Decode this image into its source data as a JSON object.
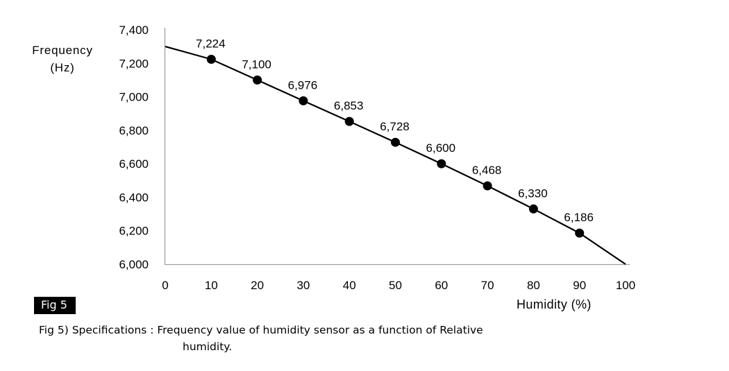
{
  "figure": {
    "badge_label": "Fig 5",
    "caption_line1": "Fig 5) Specifications : Frequency value of humidity sensor as a function of Relative",
    "caption_line2": "humidity."
  },
  "chart_data": {
    "type": "line",
    "title": "",
    "ylabel": "Frequency",
    "ylabel_units": "(Hz)",
    "xlabel": "Humidity (%)",
    "xlim": [
      0,
      100
    ],
    "ylim": [
      6000,
      7400
    ],
    "x_ticks": [
      "0",
      "10",
      "20",
      "30",
      "40",
      "50",
      "60",
      "70",
      "80",
      "90",
      "100"
    ],
    "y_ticks": [
      "7,400",
      "7,200",
      "7,000",
      "6,800",
      "6,600",
      "6,400",
      "6,200",
      "6,000"
    ],
    "grid": false,
    "legend": false,
    "colors": {
      "line": "#000000",
      "marker": "#000000",
      "axis": "#a0a0a0",
      "text": "#000000"
    },
    "series": [
      {
        "name": "frequency-vs-relative-humidity",
        "x": [
          0,
          10,
          20,
          30,
          40,
          50,
          60,
          70,
          80,
          90,
          100
        ],
        "y": [
          7300,
          7224,
          7100,
          6976,
          6853,
          6728,
          6600,
          6468,
          6330,
          6186,
          6000
        ],
        "markers": [
          false,
          true,
          true,
          true,
          true,
          true,
          true,
          true,
          true,
          true,
          false
        ],
        "point_labels": [
          "",
          "7,224",
          "7,100",
          "6,976",
          "6,853",
          "6,728",
          "6,600",
          "6,468",
          "6,330",
          "6,186",
          ""
        ]
      }
    ]
  }
}
